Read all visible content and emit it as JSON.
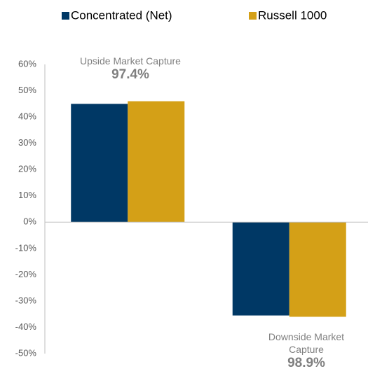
{
  "chart_data": {
    "type": "bar",
    "categories": [
      null,
      null
    ],
    "series": [
      {
        "name": "Concentrated (Net)",
        "color": "#003865",
        "values": [
          45,
          -35.5
        ]
      },
      {
        "name": "Russell 1000",
        "color": "#d4a017",
        "values": [
          46,
          -36
        ]
      }
    ],
    "ylim": [
      -50,
      60
    ],
    "yticks": [
      {
        "value": -50,
        "label": "-50%"
      },
      {
        "value": -40,
        "label": "-40%"
      },
      {
        "value": -30,
        "label": "-30%"
      },
      {
        "value": -20,
        "label": "-20%"
      },
      {
        "value": -10,
        "label": "-10%"
      },
      {
        "value": 0,
        "label": "0%"
      },
      {
        "value": 10,
        "label": "10%"
      },
      {
        "value": 20,
        "label": "20%"
      },
      {
        "value": 30,
        "label": "30%"
      },
      {
        "value": 40,
        "label": "40%"
      },
      {
        "value": 50,
        "label": "50%"
      },
      {
        "value": 60,
        "label": "60%"
      }
    ],
    "legend": "top",
    "annotations": [
      {
        "text": "Upside Market Capture",
        "value": "97.4%"
      },
      {
        "text": "Downside Market Capture",
        "value": "98.9%"
      }
    ]
  }
}
